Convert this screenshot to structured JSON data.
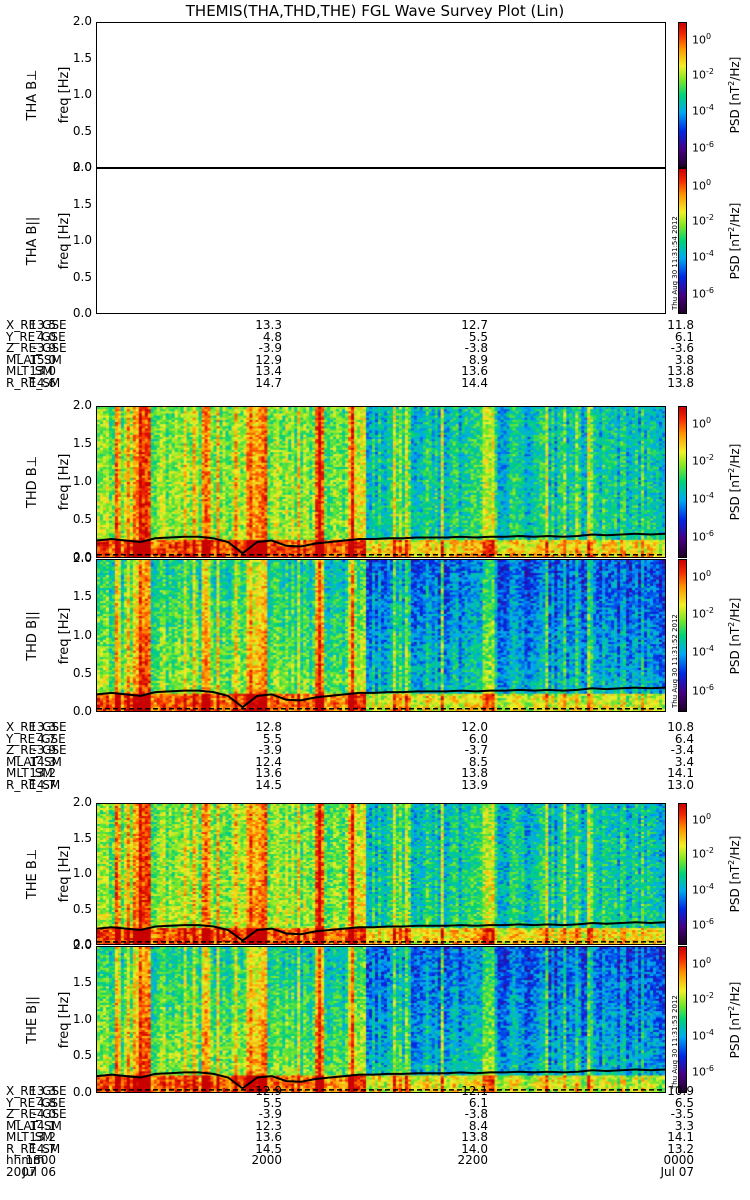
{
  "title": "THEMIS(THA,THD,THE) FGL Wave Survey Plot (Lin)",
  "colorbar": {
    "label_prefix": "PSD [nT",
    "label_sup": "2",
    "label_suffix": "/Hz]",
    "ticks": [
      {
        "base": "10",
        "exp": "0"
      },
      {
        "base": "10",
        "exp": "-2"
      },
      {
        "base": "10",
        "exp": "-4"
      },
      {
        "base": "10",
        "exp": "-6"
      }
    ]
  },
  "y_axis": {
    "unit_label": "freq [Hz]",
    "ticks": [
      "2.0",
      "1.5",
      "1.0",
      "0.5",
      "0.0"
    ]
  },
  "panels": [
    {
      "id": "tha-bperp",
      "label": "THA B⊥",
      "has_data": false,
      "stamp": ""
    },
    {
      "id": "tha-bpar",
      "label": "THA B||",
      "has_data": false,
      "stamp": "Thu Aug 30 11:31:54 2012"
    },
    {
      "id": "thd-bperp",
      "label": "THD B⊥",
      "has_data": true,
      "stamp": ""
    },
    {
      "id": "thd-bpar",
      "label": "THD B||",
      "has_data": true,
      "stamp": "Thu Aug 30 11:31:52 2012"
    },
    {
      "id": "the-bperp",
      "label": "THE B⊥",
      "has_data": true,
      "stamp": ""
    },
    {
      "id": "the-bpar",
      "label": "THE B||",
      "has_data": true,
      "stamp": "Thu Aug 30 11:31:53 2012"
    }
  ],
  "ephemeris": [
    {
      "probe": "tha",
      "rows": [
        {
          "label": "X_RE_GSE",
          "values": [
            "13.5",
            "13.3",
            "12.7",
            "11.8"
          ]
        },
        {
          "label": "Y_RE_GSE",
          "values": [
            "4.0",
            "4.8",
            "5.5",
            "6.1"
          ]
        },
        {
          "label": "Z_RE_GSE",
          "values": [
            "-3.9",
            "-3.9",
            "-3.8",
            "-3.6"
          ]
        },
        {
          "label": "MLAT_SM",
          "values": [
            "15.0",
            "12.9",
            "8.9",
            "3.8"
          ]
        },
        {
          "label": "MLT_SM",
          "values": [
            "13.0",
            "13.4",
            "13.6",
            "13.8"
          ]
        },
        {
          "label": "R_RE_SM",
          "values": [
            "14.6",
            "14.7",
            "14.4",
            "13.8"
          ]
        }
      ]
    },
    {
      "probe": "thd",
      "rows": [
        {
          "label": "X_RE_GSE",
          "values": [
            "13.3",
            "12.8",
            "12.0",
            "10.8"
          ]
        },
        {
          "label": "Y_RE_GSE",
          "values": [
            "4.7",
            "5.5",
            "6.0",
            "6.4"
          ]
        },
        {
          "label": "Z_RE_GSE",
          "values": [
            "-3.9",
            "-3.9",
            "-3.7",
            "-3.4"
          ]
        },
        {
          "label": "MLAT_SM",
          "values": [
            "14.3",
            "12.4",
            "8.5",
            "3.4"
          ]
        },
        {
          "label": "MLT_SM",
          "values": [
            "13.2",
            "13.6",
            "13.8",
            "14.1"
          ]
        },
        {
          "label": "R_RE_SM",
          "values": [
            "14.7",
            "14.5",
            "13.9",
            "13.0"
          ]
        }
      ]
    },
    {
      "probe": "the",
      "rows": [
        {
          "label": "X_RE_GSE",
          "values": [
            "13.3",
            "12.9",
            "12.1",
            "10.9"
          ]
        },
        {
          "label": "Y_RE_GSE",
          "values": [
            "4.8",
            "5.5",
            "6.1",
            "6.5"
          ]
        },
        {
          "label": "Z_RE_GSE",
          "values": [
            "-4.0",
            "-3.9",
            "-3.8",
            "-3.5"
          ]
        },
        {
          "label": "MLAT_SM",
          "values": [
            "14.1",
            "12.3",
            "8.4",
            "3.3"
          ]
        },
        {
          "label": "MLT_SM",
          "values": [
            "13.2",
            "13.6",
            "13.8",
            "14.1"
          ]
        },
        {
          "label": "R_RE_SM",
          "values": [
            "14.7",
            "14.5",
            "14.0",
            "13.2"
          ]
        },
        {
          "label": "hhmm",
          "values": [
            "1800",
            "2000",
            "2200",
            "0000"
          ]
        },
        {
          "label": "2007",
          "values": [
            "Jul 06",
            "",
            "",
            "Jul 07"
          ]
        }
      ]
    }
  ],
  "chart_data": {
    "type": "heatmap",
    "title": "THEMIS(THA,THD,THE) FGL Wave Survey Plot (Lin)",
    "ylabel": "freq [Hz]",
    "ylim": [
      0.0,
      2.0
    ],
    "x_ticks": [
      "1800",
      "2000",
      "2200",
      "0000"
    ],
    "colorbar_label": "PSD [nT^2/Hz]",
    "colorbar_range_log10": [
      -7,
      1
    ],
    "gyro_line_hz": [
      0.22,
      0.24,
      0.22,
      0.2,
      0.25,
      0.26,
      0.27,
      0.27,
      0.25,
      0.2,
      0.05,
      0.2,
      0.22,
      0.15,
      0.14,
      0.18,
      0.2,
      0.22,
      0.24,
      0.24,
      0.25,
      0.25,
      0.26,
      0.26,
      0.26,
      0.27,
      0.26,
      0.27,
      0.27,
      0.28,
      0.27,
      0.28,
      0.27,
      0.28,
      0.3,
      0.29,
      0.3,
      0.31,
      0.3,
      0.31
    ],
    "dashed_line_hz": 0.03,
    "series": [
      {
        "name": "THA B⊥",
        "has_data": false
      },
      {
        "name": "THA B||",
        "has_data": false
      },
      {
        "name": "THD B⊥",
        "has_data": true
      },
      {
        "name": "THD B||",
        "has_data": true
      },
      {
        "name": "THE B⊥",
        "has_data": true
      },
      {
        "name": "THE B||",
        "has_data": true
      }
    ]
  }
}
